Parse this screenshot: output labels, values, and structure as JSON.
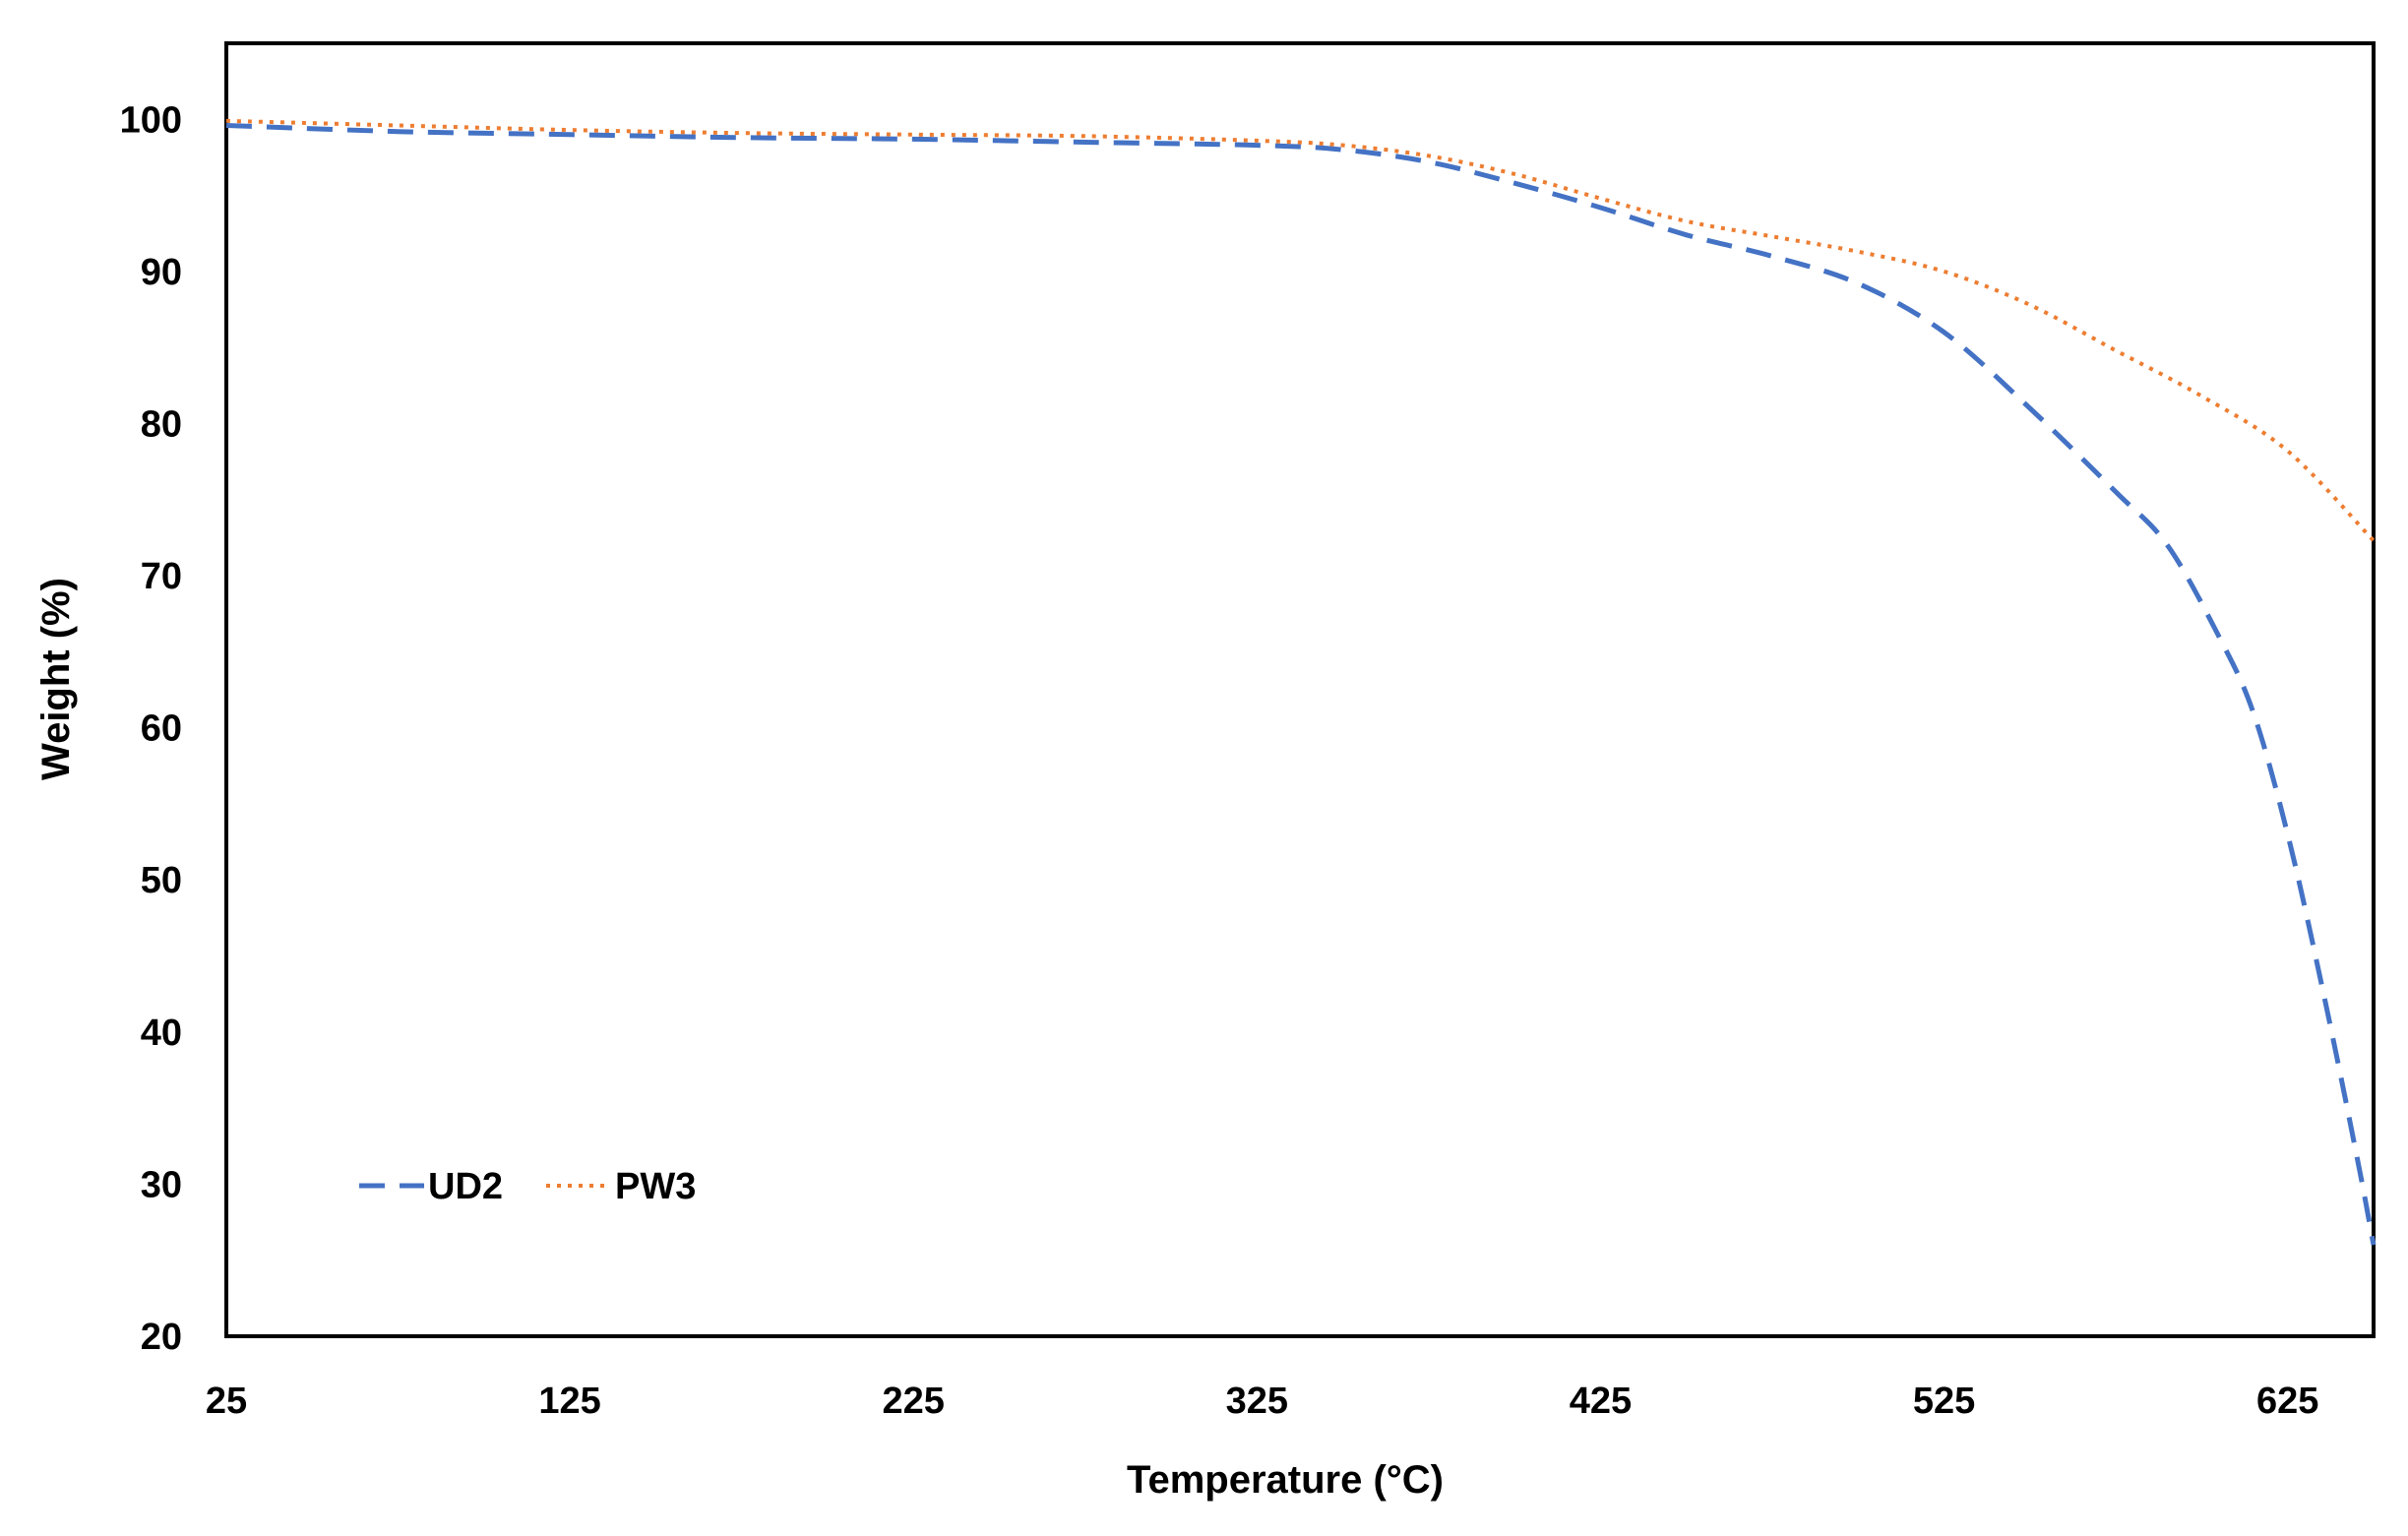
{
  "chart_data": {
    "type": "line",
    "xlabel": "Temperature (°C)",
    "ylabel": "Weight (%)",
    "xlim": [
      25,
      650
    ],
    "ylim": [
      20,
      105
    ],
    "xticks": [
      25,
      125,
      225,
      325,
      425,
      525,
      625
    ],
    "yticks": [
      20,
      30,
      40,
      50,
      60,
      70,
      80,
      90,
      100
    ],
    "grid": false,
    "legend_position": "bottom-left",
    "series": [
      {
        "name": "UD2",
        "color": "#4472C4",
        "style": "dashed",
        "x": [
          25,
          75,
          125,
          175,
          225,
          275,
          325,
          350,
          375,
          400,
          425,
          450,
          475,
          500,
          525,
          550,
          575,
          590,
          605,
          615,
          625,
          635,
          645,
          650
        ],
        "y": [
          99.6,
          99.2,
          99.0,
          98.8,
          98.7,
          98.5,
          98.3,
          98.0,
          97.2,
          95.8,
          94.2,
          92.4,
          91.0,
          89.2,
          86.0,
          81.0,
          75.5,
          72.0,
          66.0,
          61.0,
          53.0,
          43.0,
          32.0,
          26.0
        ]
      },
      {
        "name": "PW3",
        "color": "#ED7D31",
        "style": "dotted",
        "x": [
          25,
          75,
          125,
          175,
          225,
          275,
          325,
          350,
          375,
          400,
          425,
          450,
          475,
          500,
          525,
          550,
          575,
          600,
          625,
          650
        ],
        "y": [
          99.9,
          99.6,
          99.3,
          99.1,
          99.0,
          98.9,
          98.6,
          98.3,
          97.6,
          96.4,
          94.8,
          93.3,
          92.3,
          91.3,
          90.0,
          87.8,
          84.8,
          81.8,
          78.2,
          72.3
        ]
      }
    ]
  }
}
